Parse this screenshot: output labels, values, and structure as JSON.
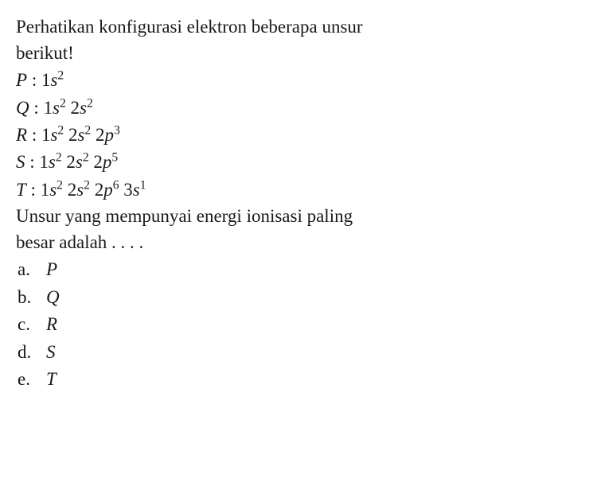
{
  "intro_line1": "Perhatikan konfigurasi elektron beberapa unsur",
  "intro_line2": "berikut!",
  "configs": [
    {
      "label": "P",
      "terms": [
        {
          "n": "1",
          "orb": "s",
          "e": "2"
        }
      ]
    },
    {
      "label": "Q",
      "terms": [
        {
          "n": "1",
          "orb": "s",
          "e": "2"
        },
        {
          "n": "2",
          "orb": "s",
          "e": "2"
        }
      ]
    },
    {
      "label": "R",
      "terms": [
        {
          "n": "1",
          "orb": "s",
          "e": "2"
        },
        {
          "n": "2",
          "orb": "s",
          "e": "2"
        },
        {
          "n": "2",
          "orb": "p",
          "e": "3"
        }
      ]
    },
    {
      "label": "S",
      "terms": [
        {
          "n": "1",
          "orb": "s",
          "e": "2"
        },
        {
          "n": "2",
          "orb": "s",
          "e": "2"
        },
        {
          "n": "2",
          "orb": "p",
          "e": "5"
        }
      ]
    },
    {
      "label": "T",
      "terms": [
        {
          "n": "1",
          "orb": "s",
          "e": "2"
        },
        {
          "n": "2",
          "orb": "s",
          "e": "2"
        },
        {
          "n": "2",
          "orb": "p",
          "e": "6"
        },
        {
          "n": "3",
          "orb": "s",
          "e": "1"
        }
      ]
    }
  ],
  "question_line1": "Unsur yang mempunyai energi ionisasi paling",
  "question_line2": "besar adalah . . . .",
  "options": [
    {
      "letter": "a.",
      "value": "P"
    },
    {
      "letter": "b.",
      "value": "Q"
    },
    {
      "letter": "c.",
      "value": "R"
    },
    {
      "letter": "d.",
      "value": "S"
    },
    {
      "letter": "e.",
      "value": "T"
    }
  ],
  "style": {
    "font_size": 23,
    "text_color": "#1a1a1a",
    "background_color": "#ffffff",
    "font_family": "Georgia, Times New Roman, serif"
  }
}
